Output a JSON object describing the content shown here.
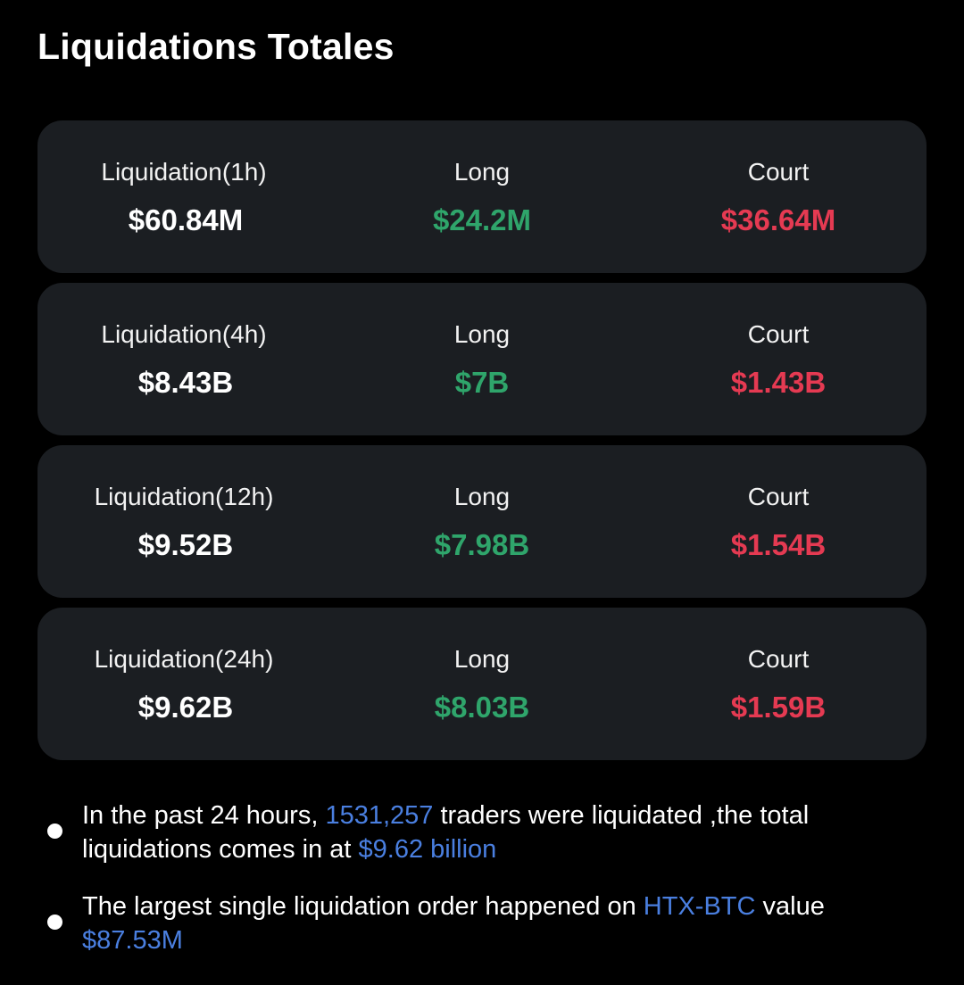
{
  "header": {
    "title": "Liquidations Totales"
  },
  "colors": {
    "long": "#2fa56b",
    "short": "#e53a52",
    "highlight": "#4a7fe0",
    "card_bg": "#1b1e22"
  },
  "cards": [
    {
      "period_label": "Liquidation(1h)",
      "total": "$60.84M",
      "long_label": "Long",
      "long_value": "$24.2M",
      "short_label": "Court",
      "short_value": "$36.64M"
    },
    {
      "period_label": "Liquidation(4h)",
      "total": "$8.43B",
      "long_label": "Long",
      "long_value": "$7B",
      "short_label": "Court",
      "short_value": "$1.43B"
    },
    {
      "period_label": "Liquidation(12h)",
      "total": "$9.52B",
      "long_label": "Long",
      "long_value": "$7.98B",
      "short_label": "Court",
      "short_value": "$1.54B"
    },
    {
      "period_label": "Liquidation(24h)",
      "total": "$9.62B",
      "long_label": "Long",
      "long_value": "$8.03B",
      "short_label": "Court",
      "short_value": "$1.59B"
    }
  ],
  "notes": [
    {
      "part1": "In the past 24 hours, ",
      "traders": "1531,257",
      "part2": " traders were liquidated ,the total liquidations comes in at ",
      "total": "$9.62 billion"
    },
    {
      "part1": "The largest single liquidation order happened on ",
      "pair": "HTX-BTC",
      "part2": " value ",
      "value": "$87.53M"
    }
  ]
}
